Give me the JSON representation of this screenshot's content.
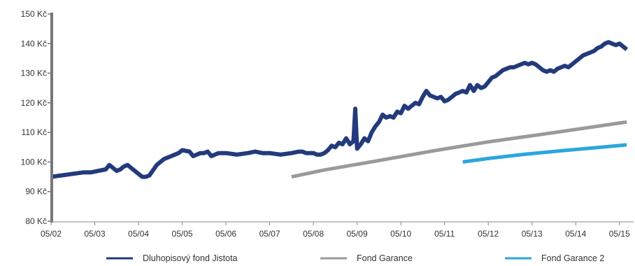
{
  "chart_data": {
    "type": "line",
    "title": "",
    "xlabel": "",
    "ylabel": "",
    "x_unit": "months since 2002-05",
    "xlim": [
      0,
      158
    ],
    "ylim": [
      80,
      150
    ],
    "x_ticks": [
      {
        "label": "05/02",
        "x": 0
      },
      {
        "label": "05/03",
        "x": 12
      },
      {
        "label": "05/04",
        "x": 24
      },
      {
        "label": "05/05",
        "x": 36
      },
      {
        "label": "05/06",
        "x": 48
      },
      {
        "label": "05/07",
        "x": 60
      },
      {
        "label": "05/08",
        "x": 72
      },
      {
        "label": "05/09",
        "x": 84
      },
      {
        "label": "05/10",
        "x": 96
      },
      {
        "label": "05/11",
        "x": 108
      },
      {
        "label": "05/12",
        "x": 120
      },
      {
        "label": "05/13",
        "x": 132
      },
      {
        "label": "05/14",
        "x": 144
      },
      {
        "label": "05/15",
        "x": 156
      }
    ],
    "y_ticks": [
      {
        "label": "80 Kč",
        "value": 80
      },
      {
        "label": "90 Kč",
        "value": 90
      },
      {
        "label": "100 Kč",
        "value": 100
      },
      {
        "label": "110 Kč",
        "value": 110
      },
      {
        "label": "120 Kč",
        "value": 120
      },
      {
        "label": "130 Kč",
        "value": 130
      },
      {
        "label": "140 Kč",
        "value": 140
      },
      {
        "label": "150 Kč",
        "value": 150
      }
    ],
    "legend_position": "bottom",
    "series": [
      {
        "name": "Dluhopisový fond Jistota",
        "color": "#233a7c",
        "stroke": 6,
        "x": [
          0,
          3,
          6,
          9,
          11,
          13,
          15,
          16,
          18,
          19,
          20,
          21,
          22,
          24,
          25,
          26,
          27,
          29,
          31,
          33,
          35,
          36,
          38,
          39,
          40,
          41,
          42,
          43,
          44,
          45,
          46,
          48,
          51,
          54,
          56,
          58,
          60,
          63,
          66,
          68,
          69,
          70,
          72,
          73,
          74,
          75,
          76,
          77,
          78,
          79,
          80,
          81,
          82,
          83,
          83.5,
          84,
          85,
          86,
          87,
          88,
          89,
          90,
          91,
          92,
          93,
          94,
          95,
          96,
          97,
          98,
          99,
          100,
          101,
          102,
          103,
          104,
          105,
          106,
          107,
          108,
          109,
          110,
          111,
          112,
          113,
          114,
          115,
          116,
          117,
          118,
          119,
          120,
          121,
          122,
          123,
          124,
          125,
          126,
          127,
          128,
          129,
          130,
          131,
          132,
          133,
          134,
          135,
          136,
          137,
          138,
          139,
          140,
          141,
          142,
          143,
          144,
          145,
          146,
          147,
          148,
          149,
          150,
          151,
          152,
          153,
          154,
          155,
          156,
          157,
          158
        ],
        "values": [
          95,
          95.5,
          96,
          96.5,
          96.5,
          97,
          97.5,
          99,
          97,
          97.5,
          98.5,
          99,
          98,
          96,
          95,
          95,
          95.5,
          99,
          101,
          102,
          103,
          104,
          103.5,
          102,
          102.5,
          103,
          103,
          103.5,
          102,
          102.5,
          103,
          103,
          102.5,
          103,
          103.5,
          103,
          103,
          102.5,
          103,
          103.5,
          103.5,
          103,
          103,
          102.5,
          102.5,
          103,
          104,
          105.5,
          105,
          106.5,
          106,
          108,
          106,
          107,
          118,
          104.5,
          106,
          108,
          107,
          110,
          112,
          113.5,
          116,
          115,
          115.5,
          115,
          117,
          116.5,
          119,
          118,
          119,
          120,
          119.5,
          122,
          124,
          122.5,
          122,
          121.5,
          122,
          120.5,
          121,
          122,
          123,
          123.5,
          124,
          123.5,
          126,
          124,
          126,
          125,
          125.5,
          127,
          128.5,
          129,
          130,
          131,
          131.5,
          132,
          132,
          132.5,
          133,
          133.5,
          133,
          133.5,
          133,
          132,
          131,
          130.5,
          131,
          130.5,
          131.5,
          132,
          132.5,
          132,
          133,
          134,
          135,
          136,
          136.5,
          137,
          137.5,
          138.5,
          139,
          140,
          140.5,
          140,
          139.5,
          140,
          139,
          138
        ]
      },
      {
        "name": "Fond Garance",
        "color": "#9a9a9a",
        "stroke": 5,
        "x": [
          66,
          75,
          90,
          105,
          120,
          135,
          158
        ],
        "values": [
          95,
          97.3,
          100.5,
          103.8,
          106.8,
          109.4,
          113.5
        ]
      },
      {
        "name": "Fond Garance 2",
        "color": "#2aa6de",
        "stroke": 5,
        "x": [
          113,
          120,
          130,
          140,
          150,
          158
        ],
        "values": [
          100,
          101.2,
          102.6,
          103.8,
          104.9,
          105.8
        ]
      }
    ]
  }
}
